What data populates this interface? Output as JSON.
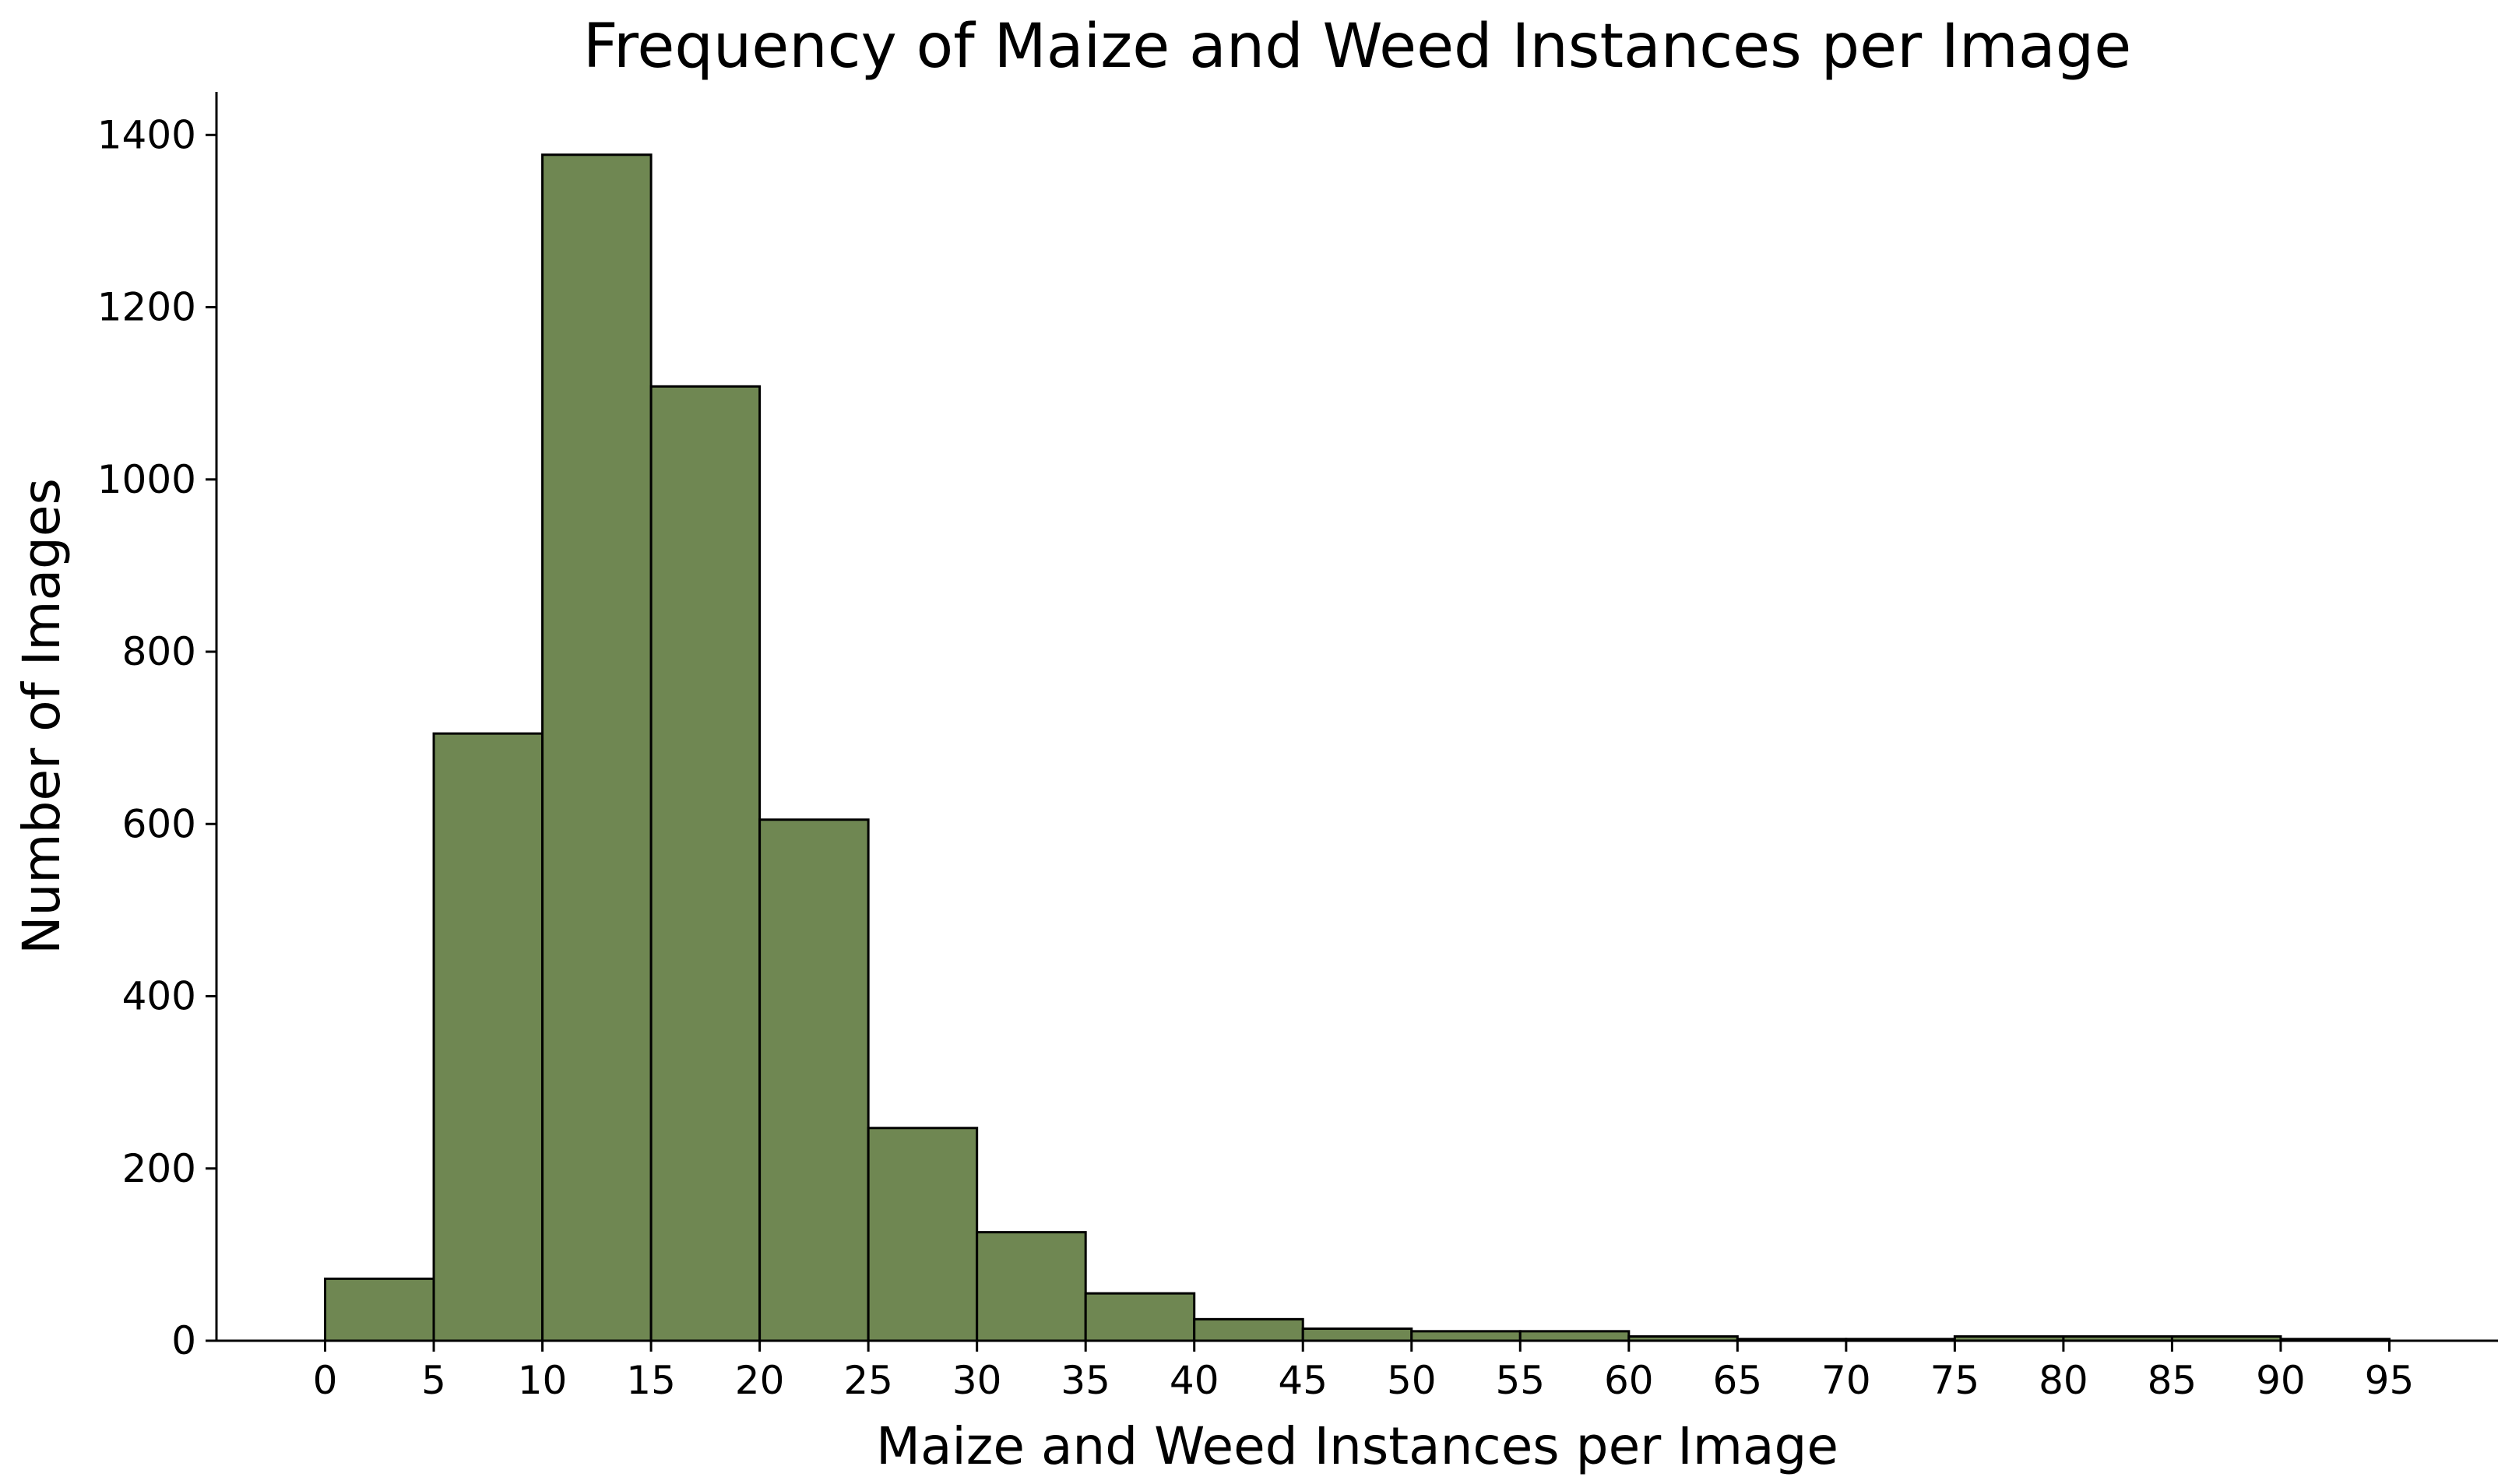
{
  "chart_data": {
    "type": "bar",
    "title": "Frequency of Maize and Weed Instances per Image",
    "xlabel": "Maize and Weed Instances per Image",
    "ylabel": "Number of Images",
    "bin_edges": [
      0,
      5,
      10,
      15,
      20,
      25,
      30,
      35,
      40,
      45,
      50,
      55,
      60,
      65,
      70,
      75,
      80,
      85,
      90,
      95
    ],
    "values": [
      72,
      705,
      1377,
      1108,
      605,
      247,
      126,
      55,
      25,
      14,
      11,
      11,
      5,
      2,
      2,
      5,
      5,
      5,
      2
    ],
    "xticks": [
      "0",
      "5",
      "10",
      "15",
      "20",
      "25",
      "30",
      "35",
      "40",
      "45",
      "50",
      "55",
      "60",
      "65",
      "70",
      "75",
      "80",
      "85",
      "90",
      "95"
    ],
    "yticks": [
      "0",
      "200",
      "400",
      "600",
      "800",
      "1000",
      "1200",
      "1400"
    ],
    "xlim": [
      -5,
      100
    ],
    "ylim": [
      0,
      1450
    ],
    "grid": false,
    "bar_color": "#6f8752",
    "edge_color": "#000000"
  }
}
